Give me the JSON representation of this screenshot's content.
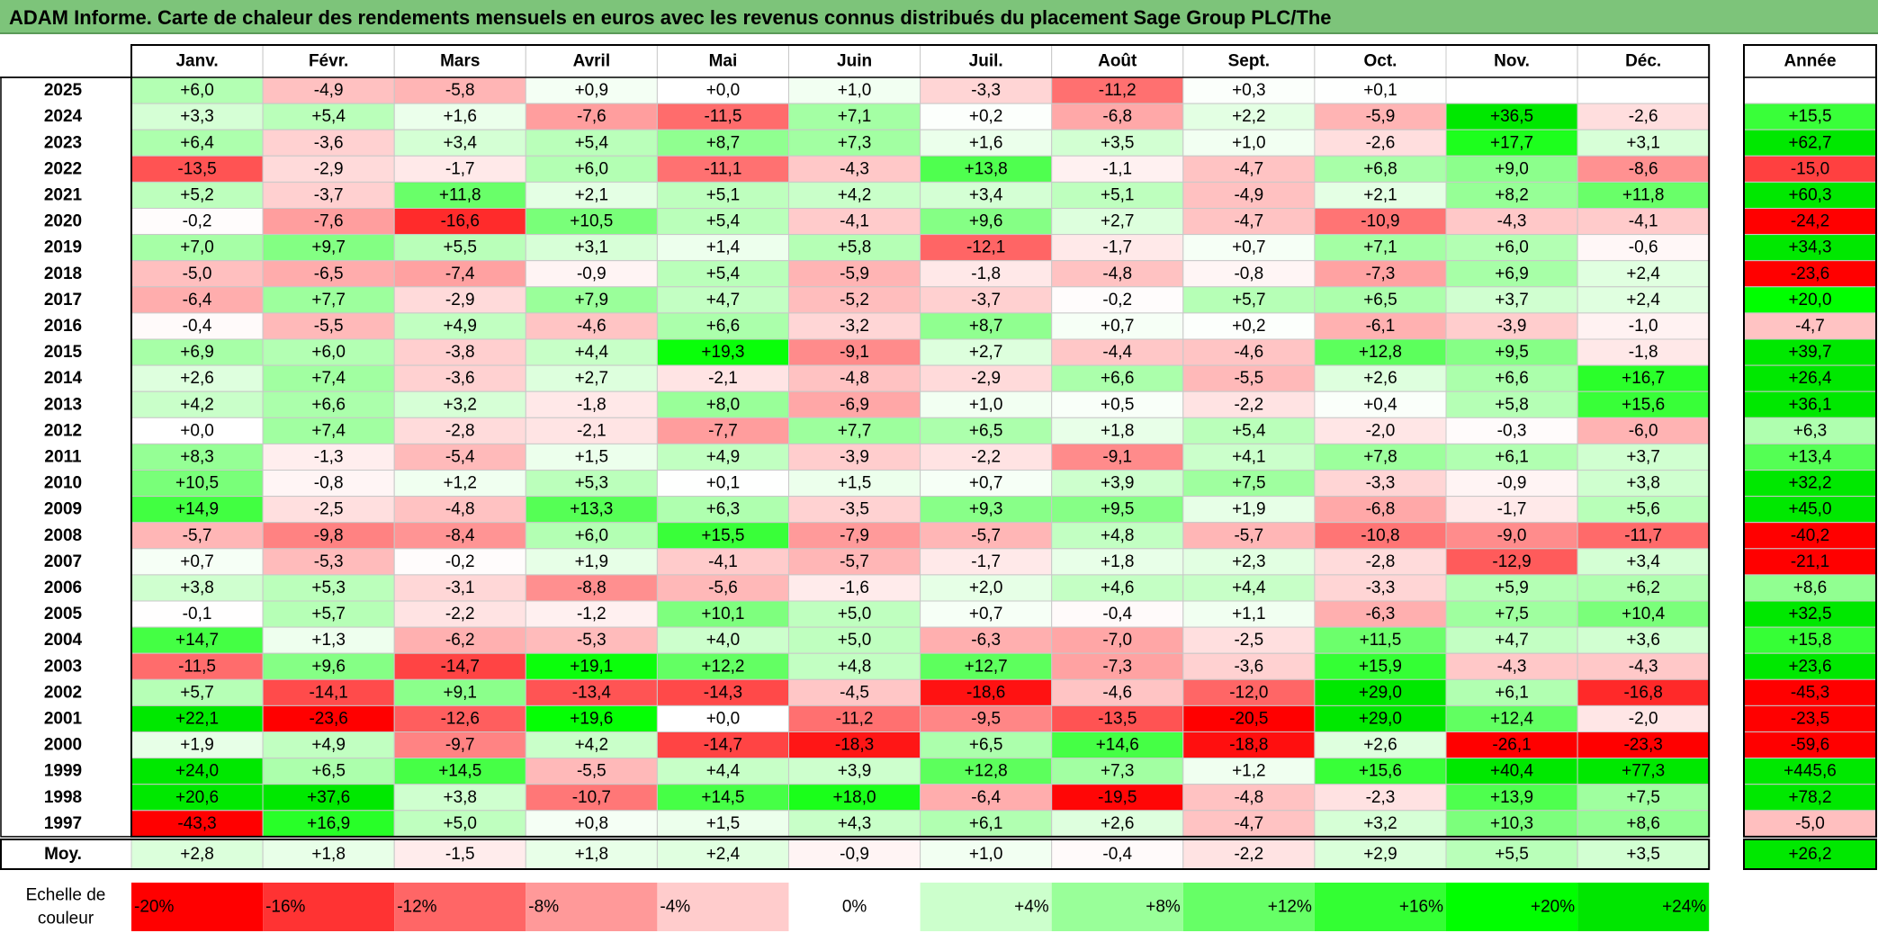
{
  "title": "ADAM Informe. Carte de chaleur des rendements mensuels en euros avec les revenus connus distribués du placement Sage Group PLC/The",
  "chart_data": {
    "type": "heatmap",
    "months": [
      "Janv.",
      "Févr.",
      "Mars",
      "Avril",
      "Mai",
      "Juin",
      "Juil.",
      "Août",
      "Sept.",
      "Oct.",
      "Nov.",
      "Déc."
    ],
    "year_col_label": "Année",
    "years": [
      "2025",
      "2024",
      "2023",
      "2022",
      "2021",
      "2020",
      "2019",
      "2018",
      "2017",
      "2016",
      "2015",
      "2014",
      "2013",
      "2012",
      "2011",
      "2010",
      "2009",
      "2008",
      "2007",
      "2006",
      "2005",
      "2004",
      "2003",
      "2002",
      "2001",
      "2000",
      "1999",
      "1998",
      "1997"
    ],
    "values": [
      [
        6.0,
        -4.9,
        -5.8,
        0.9,
        0.0,
        1.0,
        -3.3,
        -11.2,
        0.3,
        0.1,
        null,
        null
      ],
      [
        3.3,
        5.4,
        1.6,
        -7.6,
        -11.5,
        7.1,
        0.2,
        -6.8,
        2.2,
        -5.9,
        36.5,
        -2.6
      ],
      [
        6.4,
        -3.6,
        3.4,
        5.4,
        8.7,
        7.3,
        1.6,
        3.5,
        1.0,
        -2.6,
        17.7,
        3.1
      ],
      [
        -13.5,
        -2.9,
        -1.7,
        6.0,
        -11.1,
        -4.3,
        13.8,
        -1.1,
        -4.7,
        6.8,
        9.0,
        -8.6
      ],
      [
        5.2,
        -3.7,
        11.8,
        2.1,
        5.1,
        4.2,
        3.4,
        5.1,
        -4.9,
        2.1,
        8.2,
        11.8
      ],
      [
        -0.2,
        -7.6,
        -16.6,
        10.5,
        5.4,
        -4.1,
        9.6,
        2.7,
        -4.7,
        -10.9,
        -4.3,
        -4.1
      ],
      [
        7.0,
        9.7,
        5.5,
        3.1,
        1.4,
        5.8,
        -12.1,
        -1.7,
        0.7,
        7.1,
        6.0,
        -0.6
      ],
      [
        -5.0,
        -6.5,
        -7.4,
        -0.9,
        5.4,
        -5.9,
        -1.8,
        -4.8,
        -0.8,
        -7.3,
        6.9,
        2.4
      ],
      [
        -6.4,
        7.7,
        -2.9,
        7.9,
        4.7,
        -5.2,
        -3.7,
        -0.2,
        5.7,
        6.5,
        3.7,
        2.4
      ],
      [
        -0.4,
        -5.5,
        4.9,
        -4.6,
        6.6,
        -3.2,
        8.7,
        0.7,
        0.2,
        -6.1,
        -3.9,
        -1.0
      ],
      [
        6.9,
        6.0,
        -3.8,
        4.4,
        19.3,
        -9.1,
        2.7,
        -4.4,
        -4.6,
        12.8,
        9.5,
        -1.8
      ],
      [
        2.6,
        7.4,
        -3.6,
        2.7,
        -2.1,
        -4.8,
        -2.9,
        6.6,
        -5.5,
        2.6,
        6.6,
        16.7
      ],
      [
        4.2,
        6.6,
        3.2,
        -1.8,
        8.0,
        -6.9,
        1.0,
        0.5,
        -2.2,
        0.4,
        5.8,
        15.6
      ],
      [
        0.0,
        7.4,
        -2.8,
        -2.1,
        -7.7,
        7.7,
        6.5,
        1.8,
        5.4,
        -2.0,
        -0.3,
        -6.0
      ],
      [
        8.3,
        -1.3,
        -5.4,
        1.5,
        4.9,
        -3.9,
        -2.2,
        -9.1,
        4.1,
        7.8,
        6.1,
        3.7
      ],
      [
        10.5,
        -0.8,
        1.2,
        5.3,
        0.1,
        1.5,
        0.7,
        3.9,
        7.5,
        -3.3,
        -0.9,
        3.8
      ],
      [
        14.9,
        -2.5,
        -4.8,
        13.3,
        6.3,
        -3.5,
        9.3,
        9.5,
        1.9,
        -6.8,
        -1.7,
        5.6
      ],
      [
        -5.7,
        -9.8,
        -8.4,
        6.0,
        15.5,
        -7.9,
        -5.7,
        4.8,
        -5.7,
        -10.8,
        -9.0,
        -11.7
      ],
      [
        0.7,
        -5.3,
        -0.2,
        1.9,
        -4.1,
        -5.7,
        -1.7,
        1.8,
        2.3,
        -2.8,
        -12.9,
        3.4
      ],
      [
        3.8,
        5.3,
        -3.1,
        -8.8,
        -5.6,
        -1.6,
        2.0,
        4.6,
        4.4,
        -3.3,
        5.9,
        6.2
      ],
      [
        -0.1,
        5.7,
        -2.2,
        -1.2,
        10.1,
        5.0,
        0.7,
        -0.4,
        1.1,
        -6.3,
        7.5,
        10.4
      ],
      [
        14.7,
        1.3,
        -6.2,
        -5.3,
        4.0,
        5.0,
        -6.3,
        -7.0,
        -2.5,
        11.5,
        4.7,
        3.6
      ],
      [
        -11.5,
        9.6,
        -14.7,
        19.1,
        12.2,
        4.8,
        12.7,
        -7.3,
        -3.6,
        15.9,
        -4.3,
        -4.3
      ],
      [
        5.7,
        -14.1,
        9.1,
        -13.4,
        -14.3,
        -4.5,
        -18.6,
        -4.6,
        -12.0,
        29.0,
        6.1,
        -16.8
      ],
      [
        22.1,
        -23.6,
        -12.6,
        19.6,
        0.0,
        -11.2,
        -9.5,
        -13.5,
        -20.5,
        29.0,
        12.4,
        -2.0
      ],
      [
        1.9,
        4.9,
        -9.7,
        4.2,
        -14.7,
        -18.3,
        6.5,
        14.6,
        -18.8,
        2.6,
        -26.1,
        -23.3
      ],
      [
        24.0,
        6.5,
        14.5,
        -5.5,
        4.4,
        3.9,
        12.8,
        7.3,
        1.2,
        15.6,
        40.4,
        77.3
      ],
      [
        20.6,
        37.6,
        3.8,
        -10.7,
        14.5,
        18.0,
        -6.4,
        -19.5,
        -4.8,
        -2.3,
        13.9,
        7.5
      ],
      [
        -43.3,
        16.9,
        5.0,
        0.8,
        1.5,
        4.3,
        6.1,
        2.6,
        -4.7,
        3.2,
        10.3,
        8.6
      ]
    ],
    "annual": [
      null,
      15.5,
      62.7,
      -15.0,
      60.3,
      -24.2,
      34.3,
      -23.6,
      20.0,
      -4.7,
      39.7,
      26.4,
      36.1,
      6.3,
      13.4,
      32.2,
      45.0,
      -40.2,
      -21.1,
      8.6,
      32.5,
      15.8,
      23.6,
      -45.3,
      -23.5,
      -59.6,
      445.6,
      78.2,
      -5.0
    ],
    "avg_label": "Moy.",
    "avg_values": [
      2.8,
      1.8,
      -1.5,
      1.8,
      2.4,
      -0.9,
      1.0,
      -0.4,
      -2.2,
      2.9,
      5.5,
      3.5
    ],
    "avg_annual": 26.2,
    "scale_label_line1": "Echelle de",
    "scale_label_line2": "couleur",
    "scale": [
      {
        "label": "-20%",
        "value": -20,
        "color": "#ff0000"
      },
      {
        "label": "-16%",
        "value": -16,
        "color": "#ff3333"
      },
      {
        "label": "-12%",
        "value": -12,
        "color": "#ff6666"
      },
      {
        "label": "-8%",
        "value": -8,
        "color": "#ff9999"
      },
      {
        "label": "-4%",
        "value": -4,
        "color": "#ffcccc"
      },
      {
        "label": "0%",
        "value": 0,
        "color": "#ffffff"
      },
      {
        "label": "+4%",
        "value": 4,
        "color": "#ccffcc"
      },
      {
        "label": "+8%",
        "value": 8,
        "color": "#99ff99"
      },
      {
        "label": "+12%",
        "value": 12,
        "color": "#66ff66"
      },
      {
        "label": "+16%",
        "value": 16,
        "color": "#33ff33"
      },
      {
        "label": "+20%",
        "value": 20,
        "color": "#00ff00"
      },
      {
        "label": "+24%",
        "value": 24,
        "color": "#00e600"
      }
    ]
  }
}
